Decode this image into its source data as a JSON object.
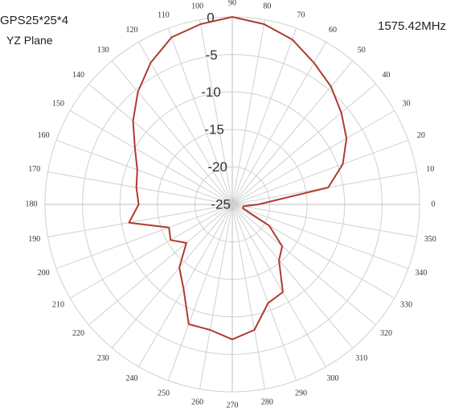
{
  "header": {
    "title": "GPS25*25*4",
    "subtitle": "YZ Plane",
    "frequency": "1575.42MHz"
  },
  "chart_data": {
    "type": "polar-line",
    "title": "GPS25*25*4",
    "subtitle": "YZ Plane",
    "annotation": "1575.42MHz",
    "angle_unit": "degrees",
    "angle_direction": "counterclockwise",
    "zero_angle_position": "right",
    "angle_ticks": [
      0,
      10,
      20,
      30,
      40,
      50,
      60,
      70,
      80,
      90,
      100,
      110,
      120,
      130,
      140,
      150,
      160,
      170,
      180,
      190,
      200,
      210,
      220,
      230,
      240,
      250,
      260,
      270,
      280,
      290,
      300,
      310,
      320,
      330,
      340,
      350
    ],
    "radial_range": [
      -25,
      0
    ],
    "radial_ticks": [
      0,
      -5,
      -10,
      -15,
      -20,
      -25
    ],
    "radial_label_angle": 95,
    "grid": true,
    "colors": {
      "series": "#b03a2e",
      "grid": "#d0d0d0",
      "text": "#333333"
    },
    "series": [
      {
        "theta": [
          0,
          10,
          20,
          30,
          40,
          50,
          60,
          70,
          80,
          90,
          100,
          110,
          120,
          130,
          140,
          150,
          160,
          170,
          180,
          190,
          200,
          210,
          220,
          230,
          240,
          250,
          260,
          270,
          280,
          290,
          300,
          310,
          320,
          330,
          340,
          350
        ],
        "r": [
          -21.5,
          -12,
          -9.3,
          -7.4,
          -6,
          -4.5,
          -3.2,
          -1.6,
          -0.6,
          0,
          -0.6,
          -1.3,
          -3.2,
          -5.4,
          -7.7,
          -10,
          -11.5,
          -12,
          -12.5,
          -11,
          -16,
          -15.5,
          -17,
          -14,
          -12,
          -8,
          -8,
          -7,
          -8,
          -11,
          -11.5,
          -15.3,
          -16.3,
          -19.3,
          -23.5,
          -23.5
        ]
      }
    ]
  }
}
